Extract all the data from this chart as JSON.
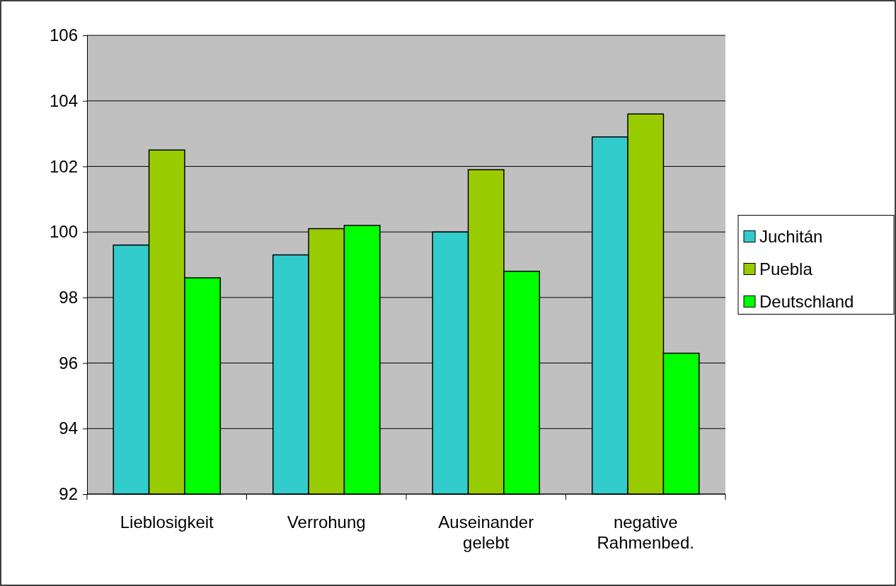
{
  "chart_data": {
    "type": "bar",
    "categories": [
      "Lieblosigkeit",
      "Verrohung",
      "Auseinander\ngelebt",
      "negative\nRahmenbed."
    ],
    "series": [
      {
        "name": "Juchitán",
        "color": "#33cccc",
        "values": [
          99.6,
          99.3,
          100.0,
          102.9
        ]
      },
      {
        "name": "Puebla",
        "color": "#99cc00",
        "values": [
          102.5,
          100.1,
          101.9,
          103.6
        ]
      },
      {
        "name": "Deutschland",
        "color": "#00ff00",
        "values": [
          98.6,
          100.2,
          98.8,
          96.3
        ]
      }
    ],
    "ylim": [
      92,
      106
    ],
    "yticks": [
      92,
      94,
      96,
      98,
      100,
      102,
      104,
      106
    ],
    "grid": "y",
    "legend": "right"
  }
}
